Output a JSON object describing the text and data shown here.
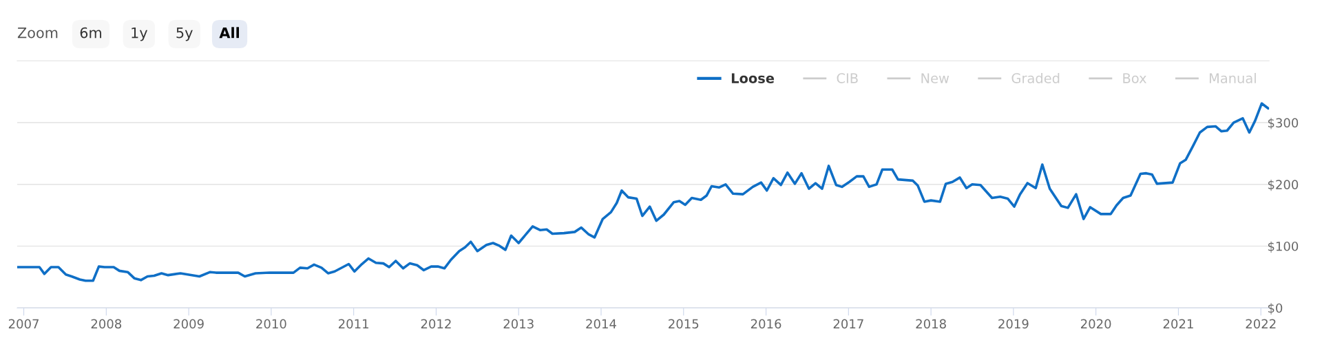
{
  "chart_data": {
    "type": "line",
    "annotations": [
      "Zoom",
      "6m",
      "1y",
      "5y",
      "All"
    ],
    "xlim": [
      2006.92,
      2022.1
    ],
    "xticks": [
      2007,
      2008,
      2009,
      2010,
      2011,
      2012,
      2013,
      2014,
      2015,
      2016,
      2017,
      2018,
      2019,
      2020,
      2021,
      2022
    ],
    "ylim": [
      0,
      400
    ],
    "yticks": [
      {
        "value": 0,
        "label": "$0"
      },
      {
        "value": 100,
        "label": "$100"
      },
      {
        "value": 200,
        "label": "$200"
      },
      {
        "value": 300,
        "label": "$300"
      }
    ],
    "grid": "y",
    "legend": "top right",
    "marker": "none",
    "line_style": "solid",
    "series": [
      {
        "name": "Loose",
        "color": "#0f6fc6",
        "x": [
          2006.92,
          2007.19,
          2007.25,
          2007.33,
          2007.42,
          2007.51,
          2007.58,
          2007.68,
          2007.75,
          2007.84,
          2007.91,
          2007.98,
          2008.09,
          2008.16,
          2008.26,
          2008.34,
          2008.42,
          2008.5,
          2008.58,
          2008.67,
          2008.75,
          2008.9,
          2009.13,
          2009.26,
          2009.33,
          2009.6,
          2009.68,
          2009.81,
          2009.98,
          2010.27,
          2010.35,
          2010.44,
          2010.52,
          2010.61,
          2010.69,
          2010.77,
          2010.94,
          2011.01,
          2011.1,
          2011.18,
          2011.27,
          2011.36,
          2011.43,
          2011.51,
          2011.6,
          2011.68,
          2011.77,
          2011.85,
          2011.94,
          2012.02,
          2012.1,
          2012.18,
          2012.28,
          2012.35,
          2012.42,
          2012.5,
          2012.61,
          2012.69,
          2012.76,
          2012.84,
          2012.91,
          2013.0,
          2013.17,
          2013.26,
          2013.34,
          2013.41,
          2013.55,
          2013.68,
          2013.76,
          2013.85,
          2013.92,
          2014.02,
          2014.12,
          2014.19,
          2014.25,
          2014.33,
          2014.43,
          2014.5,
          2014.59,
          2014.67,
          2014.76,
          2014.88,
          2014.95,
          2015.02,
          2015.1,
          2015.21,
          2015.28,
          2015.34,
          2015.43,
          2015.51,
          2015.6,
          2015.72,
          2015.84,
          2015.94,
          2016.01,
          2016.09,
          2016.18,
          2016.26,
          2016.35,
          2016.43,
          2016.52,
          2016.6,
          2016.68,
          2016.76,
          2016.85,
          2016.92,
          2017.01,
          2017.1,
          2017.18,
          2017.25,
          2017.34,
          2017.41,
          2017.53,
          2017.6,
          2017.78,
          2017.84,
          2017.92,
          2018.0,
          2018.11,
          2018.18,
          2018.26,
          2018.35,
          2018.43,
          2018.5,
          2018.6,
          2018.74,
          2018.84,
          2018.93,
          2019.01,
          2019.08,
          2019.17,
          2019.27,
          2019.35,
          2019.44,
          2019.58,
          2019.66,
          2019.76,
          2019.85,
          2019.93,
          2020.06,
          2020.18,
          2020.25,
          2020.33,
          2020.42,
          2020.54,
          2020.61,
          2020.68,
          2020.74,
          2020.93,
          2021.02,
          2021.09,
          2021.18,
          2021.26,
          2021.35,
          2021.45,
          2021.52,
          2021.59,
          2021.67,
          2021.78,
          2021.86,
          2021.93,
          2022.01,
          2022.09
        ],
        "values": [
          66,
          66,
          55,
          66,
          66,
          54,
          51,
          46,
          44,
          44,
          67,
          66,
          66,
          60,
          58,
          48,
          45,
          51,
          52,
          56,
          53,
          56,
          51,
          58,
          57,
          57,
          51,
          56,
          57,
          57,
          65,
          64,
          70,
          65,
          56,
          59,
          71,
          59,
          71,
          80,
          73,
          72,
          66,
          76,
          64,
          72,
          69,
          61,
          67,
          67,
          64,
          78,
          92,
          98,
          107,
          92,
          102,
          105,
          101,
          94,
          117,
          105,
          132,
          126,
          127,
          120,
          121,
          123,
          130,
          119,
          114,
          144,
          155,
          170,
          190,
          179,
          177,
          149,
          164,
          141,
          151,
          171,
          173,
          167,
          178,
          175,
          182,
          197,
          195,
          200,
          185,
          184,
          196,
          203,
          190,
          210,
          199,
          219,
          201,
          218,
          193,
          202,
          193,
          230,
          199,
          196,
          204,
          213,
          213,
          196,
          200,
          224,
          224,
          208,
          206,
          198,
          172,
          174,
          172,
          201,
          204,
          211,
          194,
          200,
          199,
          178,
          180,
          177,
          164,
          184,
          202,
          194,
          232,
          193,
          165,
          162,
          184,
          144,
          163,
          152,
          152,
          166,
          178,
          182,
          217,
          218,
          216,
          201,
          203,
          234,
          240,
          263,
          284,
          293,
          294,
          286,
          287,
          300,
          307,
          284,
          303,
          331,
          323
        ]
      },
      {
        "name": "CIB",
        "color": "#cccccc"
      },
      {
        "name": "New",
        "color": "#cccccc"
      },
      {
        "name": "Graded",
        "color": "#cccccc"
      },
      {
        "name": "Box",
        "color": "#cccccc"
      },
      {
        "name": "Manual",
        "color": "#cccccc"
      }
    ]
  }
}
